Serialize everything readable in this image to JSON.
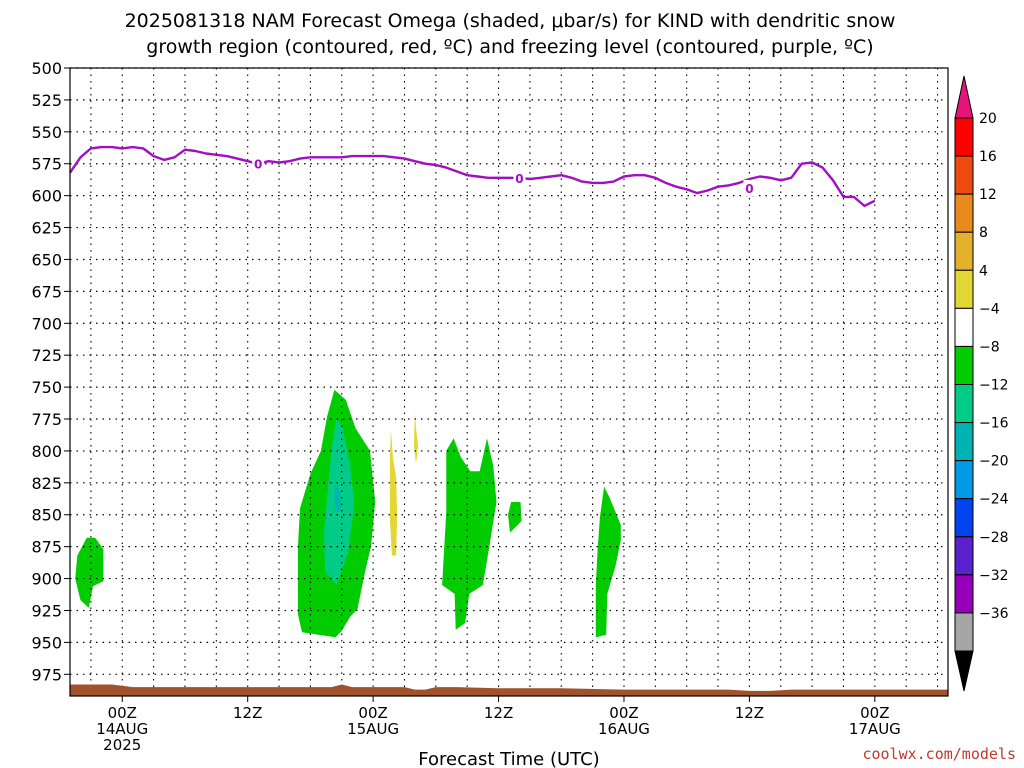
{
  "title_line1": "2025081318 NAM Forecast Omega (shaded, μbar/s) for KIND with dendritic snow",
  "title_line2": "growth region (contoured, red, ºC) and freezing level (contoured, purple, ºC)",
  "xlabel": "Forecast Time (UTC)",
  "credit": "coolwx.com/models",
  "chart_data": {
    "type": "contour",
    "title": "2025081318 NAM Forecast Omega (shaded, μbar/s) for KIND with dendritic snow growth region (contoured, red, ºC) and freezing level (contoured, purple, ºC)",
    "xlabel": "Forecast Time (UTC)",
    "ylabel": "",
    "x_unit": "hours since 2025-08-13 18Z",
    "xlim": [
      1,
      85
    ],
    "y_scale": "pressure (hPa), inverted",
    "ylim": [
      500,
      992
    ],
    "y_ticks": [
      500,
      525,
      550,
      575,
      600,
      625,
      650,
      675,
      700,
      725,
      750,
      775,
      800,
      825,
      850,
      875,
      900,
      925,
      950,
      975
    ],
    "x_ticks": [
      {
        "x": 6,
        "line1": "00Z",
        "line2": "14AUG",
        "line3": "2025"
      },
      {
        "x": 18,
        "line1": "12Z",
        "line2": "",
        "line3": ""
      },
      {
        "x": 30,
        "line1": "00Z",
        "line2": "15AUG",
        "line3": ""
      },
      {
        "x": 42,
        "line1": "12Z",
        "line2": "",
        "line3": ""
      },
      {
        "x": 54,
        "line1": "00Z",
        "line2": "16AUG",
        "line3": ""
      },
      {
        "x": 66,
        "line1": "12Z",
        "line2": "",
        "line3": ""
      },
      {
        "x": 78,
        "line1": "00Z",
        "line2": "17AUG",
        "line3": ""
      }
    ],
    "grid": true,
    "colorbar": {
      "placement": "right",
      "labels": [
        "20",
        "16",
        "12",
        "8",
        "4",
        "−4",
        "−8",
        "−12",
        "−16",
        "−20",
        "−24",
        "−28",
        "−32",
        "−36"
      ],
      "colors": [
        "#ff0000",
        "#f04b0f",
        "#e88a1e",
        "#e3b12c",
        "#e3d735",
        "#ffffff",
        "#00cc00",
        "#00cc88",
        "#00b3b3",
        "#0099e6",
        "#0044ee",
        "#5a22cc",
        "#9900bb",
        "#a6a6a6"
      ],
      "top_arrow_color": "#e6147a",
      "bottom_arrow_color": "#000000"
    },
    "freezing_level": {
      "color": "#a010c0",
      "label": "0",
      "points": [
        [
          1,
          582
        ],
        [
          2,
          570
        ],
        [
          3,
          563
        ],
        [
          4,
          562
        ],
        [
          5,
          562
        ],
        [
          6,
          563
        ],
        [
          7,
          562
        ],
        [
          8,
          563
        ],
        [
          9,
          569
        ],
        [
          10,
          572
        ],
        [
          11,
          570
        ],
        [
          12,
          564
        ],
        [
          13,
          565
        ],
        [
          14,
          567
        ],
        [
          15,
          568
        ],
        [
          16,
          569
        ],
        [
          17,
          571
        ],
        [
          18,
          573
        ],
        [
          19,
          575
        ],
        [
          20,
          573
        ],
        [
          21,
          574
        ],
        [
          22,
          573
        ],
        [
          23,
          571
        ],
        [
          24,
          570
        ],
        [
          25,
          570
        ],
        [
          26,
          570
        ],
        [
          27,
          570
        ],
        [
          28,
          569
        ],
        [
          29,
          569
        ],
        [
          30,
          569
        ],
        [
          31,
          569
        ],
        [
          32,
          570
        ],
        [
          33,
          571
        ],
        [
          34,
          573
        ],
        [
          35,
          575
        ],
        [
          36,
          576
        ],
        [
          37,
          578
        ],
        [
          38,
          581
        ],
        [
          39,
          584
        ],
        [
          40,
          585
        ],
        [
          41,
          586
        ],
        [
          42,
          586
        ],
        [
          43,
          586
        ],
        [
          44,
          586
        ],
        [
          45,
          587
        ],
        [
          46,
          586
        ],
        [
          47,
          585
        ],
        [
          48,
          584
        ],
        [
          49,
          586
        ],
        [
          50,
          589
        ],
        [
          51,
          590
        ],
        [
          52,
          590
        ],
        [
          53,
          589
        ],
        [
          54,
          585
        ],
        [
          55,
          584
        ],
        [
          56,
          584
        ],
        [
          57,
          586
        ],
        [
          58,
          590
        ],
        [
          59,
          593
        ],
        [
          60,
          595
        ],
        [
          61,
          598
        ],
        [
          62,
          596
        ],
        [
          63,
          593
        ],
        [
          64,
          592
        ],
        [
          65,
          590
        ],
        [
          66,
          587
        ],
        [
          67,
          585
        ],
        [
          68,
          586
        ],
        [
          69,
          588
        ],
        [
          70,
          586
        ],
        [
          71,
          575
        ],
        [
          72,
          574
        ],
        [
          73,
          578
        ],
        [
          74,
          588
        ],
        [
          75,
          601
        ],
        [
          76,
          601
        ],
        [
          77,
          608
        ],
        [
          78,
          604
        ]
      ],
      "contour_labels": [
        [
          19,
          575
        ],
        [
          44,
          586
        ],
        [
          66,
          594
        ]
      ]
    },
    "omega_regions": [
      {
        "level": "-4 to -8",
        "color": "#00cc00",
        "polygon": [
          [
            2.0,
            917
          ],
          [
            1.5,
            900
          ],
          [
            1.7,
            882
          ],
          [
            2.6,
            868
          ],
          [
            3.4,
            868
          ],
          [
            4.2,
            877
          ],
          [
            4.2,
            902
          ],
          [
            3.2,
            906
          ],
          [
            2.8,
            923
          ]
        ]
      },
      {
        "level": "-4 to -8",
        "color": "#00cc00",
        "polygon": [
          [
            22.8,
            875
          ],
          [
            22.8,
            928
          ],
          [
            23.2,
            942
          ],
          [
            26.4,
            946
          ],
          [
            27.0,
            941
          ],
          [
            27.8,
            930
          ],
          [
            28.5,
            924
          ],
          [
            29.3,
            892
          ],
          [
            29.8,
            875
          ],
          [
            30.2,
            840
          ],
          [
            29.7,
            800
          ],
          [
            28.3,
            782
          ],
          [
            27.4,
            760
          ],
          [
            26.3,
            752
          ],
          [
            25.6,
            773
          ],
          [
            25.0,
            800
          ],
          [
            24.0,
            818
          ],
          [
            23.0,
            845
          ]
        ]
      },
      {
        "level": "-8 to -12",
        "color": "#00cc88",
        "polygon": [
          [
            25.3,
            865
          ],
          [
            25.4,
            894
          ],
          [
            26.5,
            905
          ],
          [
            27.6,
            880
          ],
          [
            28.2,
            841
          ],
          [
            27.8,
            812
          ],
          [
            27.1,
            782
          ],
          [
            26.5,
            774
          ],
          [
            26.0,
            800
          ],
          [
            25.6,
            836
          ]
        ]
      },
      {
        "level": "-12 to -16",
        "color": "#00b3b3",
        "polygon": [
          [
            26.3,
            840
          ],
          [
            26.6,
            848
          ],
          [
            26.9,
            846
          ],
          [
            26.8,
            832
          ],
          [
            26.4,
            826
          ]
        ]
      },
      {
        "level": "4 to 8",
        "color": "#e3d735",
        "polygon": [
          [
            31.9,
            806
          ],
          [
            32.2,
            820
          ],
          [
            32.3,
            852
          ],
          [
            32.2,
            882
          ],
          [
            31.8,
            882
          ],
          [
            31.6,
            852
          ],
          [
            31.6,
            808
          ],
          [
            31.7,
            783
          ]
        ]
      },
      {
        "level": "4 to 8",
        "color": "#e3d735",
        "polygon": [
          [
            34.1,
            782
          ],
          [
            34.3,
            796
          ],
          [
            34.1,
            810
          ],
          [
            33.9,
            796
          ],
          [
            34.0,
            770
          ]
        ]
      },
      {
        "level": "-4 to -8",
        "color": "#00cc00",
        "polygon": [
          [
            37.0,
            800
          ],
          [
            37.0,
            847
          ],
          [
            36.6,
            905
          ],
          [
            37.8,
            912
          ],
          [
            37.9,
            940
          ],
          [
            38.8,
            935
          ],
          [
            39.2,
            912
          ],
          [
            40.5,
            905
          ],
          [
            41.1,
            876
          ],
          [
            41.8,
            840
          ],
          [
            41.5,
            812
          ],
          [
            40.9,
            790
          ],
          [
            40.2,
            816
          ],
          [
            39.3,
            816
          ],
          [
            38.4,
            805
          ],
          [
            37.7,
            790
          ]
        ]
      },
      {
        "level": "-4 to -8",
        "color": "#00cc00",
        "polygon": [
          [
            43.2,
            840
          ],
          [
            44.1,
            840
          ],
          [
            44.2,
            855
          ],
          [
            43.1,
            864
          ],
          [
            42.9,
            850
          ]
        ]
      },
      {
        "level": "-4 to -8",
        "color": "#00cc00",
        "polygon": [
          [
            51.3,
            904
          ],
          [
            51.3,
            946
          ],
          [
            52.3,
            944
          ],
          [
            52.4,
            912
          ],
          [
            53.2,
            890
          ],
          [
            53.7,
            870
          ],
          [
            53.7,
            858
          ],
          [
            52.6,
            836
          ],
          [
            52.1,
            828
          ],
          [
            51.7,
            852
          ],
          [
            51.5,
            875
          ]
        ]
      }
    ],
    "terrain": {
      "color": "#a0522d",
      "points": [
        [
          1,
          983
        ],
        [
          5,
          983
        ],
        [
          7,
          985
        ],
        [
          12,
          985
        ],
        [
          18,
          985
        ],
        [
          24,
          985
        ],
        [
          26,
          985
        ],
        [
          27,
          983
        ],
        [
          28,
          985
        ],
        [
          30,
          985
        ],
        [
          33,
          985
        ],
        [
          34,
          987
        ],
        [
          35,
          987
        ],
        [
          36,
          985
        ],
        [
          38,
          985
        ],
        [
          42,
          986
        ],
        [
          48,
          986
        ],
        [
          54,
          987
        ],
        [
          60,
          987
        ],
        [
          64,
          987
        ],
        [
          66,
          988
        ],
        [
          68,
          988
        ],
        [
          70,
          987
        ],
        [
          72,
          987
        ],
        [
          78,
          987
        ],
        [
          85,
          987
        ]
      ]
    }
  }
}
